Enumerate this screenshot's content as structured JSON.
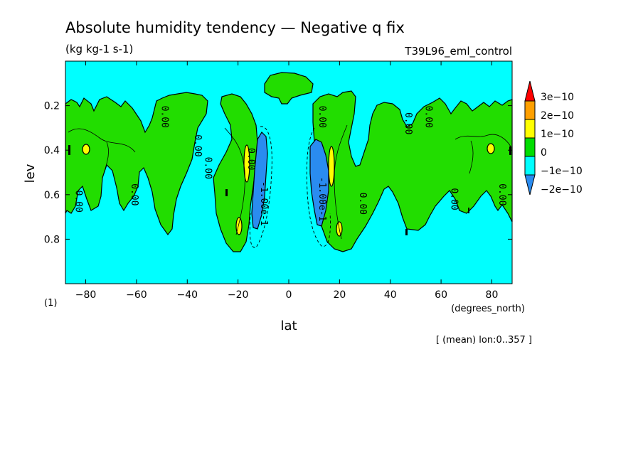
{
  "colors": {
    "minus2e10": "#2a8cf0",
    "minus1e10": "#00ffff",
    "zero": "#00dd00",
    "plus1e10": "#ffff00",
    "plus2e10": "#ffa000",
    "plus3e10": "#ff0000",
    "background": "#00ffff",
    "positive_patch": "#22dd00"
  },
  "chart_data": {
    "type": "contour",
    "title": "Absolute humidity tendency — Negative q fix",
    "units": "(kg kg-1 s-1)",
    "experiment": "T39L96_eml_control",
    "xlabel": "lat",
    "xunits": "(degrees_north)",
    "ylabel": "lev",
    "panel_index": "(1)",
    "footer": "[ (mean) lon:0..357 ]",
    "xlim": [
      -88,
      88
    ],
    "ylim": [
      1.0,
      0.0
    ],
    "x_ticks": [
      -80,
      -60,
      -40,
      -20,
      0,
      20,
      40,
      60,
      80
    ],
    "x_tick_labels": [
      "−80",
      "−60",
      "−40",
      "−20",
      "0",
      "20",
      "40",
      "60",
      "80"
    ],
    "y_ticks": [
      0.2,
      0.4,
      0.6,
      0.8
    ],
    "y_tick_labels": [
      "0.2",
      "0.4",
      "0.6",
      "0.8"
    ],
    "colorbar": {
      "levels": [
        -2e-10,
        -1e-10,
        0,
        1e-10,
        2e-10,
        3e-10
      ],
      "labels": [
        "−2e−10",
        "−1e−10",
        "0",
        "1e−10",
        "2e−10",
        "3e−10"
      ],
      "fills": [
        "#2a8cf0",
        "#00ffff",
        "#00dd00",
        "#ffff00",
        "#ffa000",
        "#ff0000"
      ]
    },
    "contour_labels": [
      {
        "text": "0.00",
        "lat": -84,
        "lev": 0.63
      },
      {
        "text": "0.00",
        "lat": -62,
        "lev": 0.6
      },
      {
        "text": "0.00",
        "lat": -50,
        "lev": 0.25
      },
      {
        "text": "0.00",
        "lat": -37,
        "lev": 0.38
      },
      {
        "text": "0.00",
        "lat": -33,
        "lev": 0.48
      },
      {
        "text": "0.00",
        "lat": -16,
        "lev": 0.44
      },
      {
        "text": "-1.00e-1",
        "lat": -11,
        "lev": 0.64
      },
      {
        "text": "-1.00e-1",
        "lat": 12,
        "lev": 0.62
      },
      {
        "text": "0.00",
        "lat": 12,
        "lev": 0.25
      },
      {
        "text": "0.00",
        "lat": 28,
        "lev": 0.64
      },
      {
        "text": "0.00",
        "lat": 46,
        "lev": 0.28
      },
      {
        "text": "0.00",
        "lat": 54,
        "lev": 0.25
      },
      {
        "text": "0.00",
        "lat": 64,
        "lev": 0.62
      },
      {
        "text": "0.00",
        "lat": 83,
        "lev": 0.6
      }
    ],
    "regions": [
      {
        "value": "positive (0 to 1e-10)",
        "lat_range": [
          -88,
          -49
        ],
        "lev_range": [
          0.15,
          0.78
        ]
      },
      {
        "value": "positive (0 to 1e-10)",
        "lat_range": [
          -46,
          -14
        ],
        "lev_range": [
          0.13,
          0.85
        ]
      },
      {
        "value": "positive (0 to 1e-10)",
        "lat_range": [
          -10,
          10
        ],
        "lev_range": [
          0.06,
          0.18
        ]
      },
      {
        "value": "positive (0 to 1e-10)",
        "lat_range": [
          10,
          88
        ],
        "lev_range": [
          0.11,
          0.85
        ]
      },
      {
        "value": "negative (-1e-10 to -2e-10)",
        "lat_range": [
          -14,
          -9
        ],
        "lev_range": [
          0.28,
          0.78
        ]
      },
      {
        "value": "negative (-1e-10 to -2e-10)",
        "lat_range": [
          7,
          17
        ],
        "lev_range": [
          0.25,
          0.77
        ]
      },
      {
        "value": "maximum (1e-10 to 2e-10)",
        "lat_range": [
          -20,
          -14
        ],
        "lev_range": [
          0.35,
          0.55
        ]
      },
      {
        "value": "maximum (1e-10 to 2e-10)",
        "lat_range": [
          13,
          21
        ],
        "lev_range": [
          0.35,
          0.58
        ]
      }
    ]
  }
}
